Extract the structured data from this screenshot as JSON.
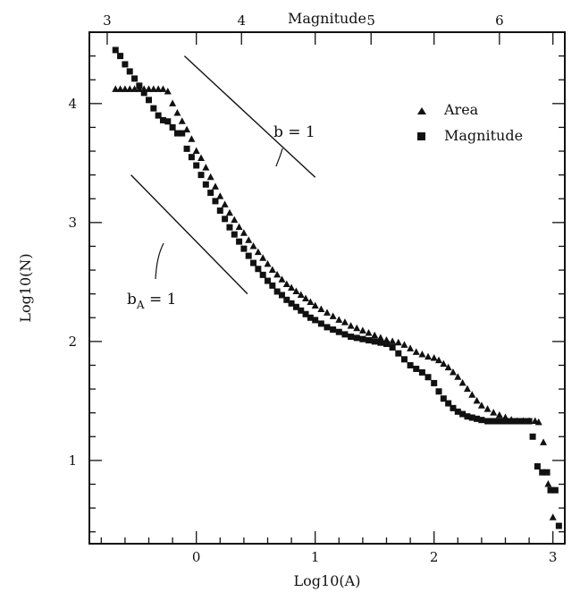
{
  "chart_data": {
    "type": "scatter",
    "xlabel": "Log10(A)",
    "ylabel": "Log10(N)",
    "top_xlabel": "Magnitude",
    "xlim": [
      -0.9,
      3.1
    ],
    "ylim": [
      0.3,
      4.6
    ],
    "x_ticks": [
      0,
      1,
      2,
      3
    ],
    "y_ticks": [
      1,
      2,
      3,
      4
    ],
    "top_ticks": [
      3,
      4,
      5,
      6
    ],
    "top_tick_positions_log10A": [
      -0.75,
      0.38,
      1.47,
      2.55
    ],
    "legend": [
      {
        "label": "Area",
        "marker": "triangle"
      },
      {
        "label": "Magnitude",
        "marker": "square"
      }
    ],
    "legend_placement": "top-right",
    "annotations": [
      {
        "text": "b = 1",
        "points_to": "upper reference line",
        "slope": -1
      },
      {
        "text": "b",
        "subscript": "A",
        "suffix": " = 1",
        "points_to": "lower reference line",
        "slope": -1
      }
    ],
    "reference_lines": [
      {
        "name": "b = 1",
        "x": [
          -0.1,
          1.0
        ],
        "y": [
          4.4,
          3.38
        ]
      },
      {
        "name": "bA = 1",
        "x": [
          -0.55,
          0.43
        ],
        "y": [
          3.4,
          2.4
        ]
      }
    ],
    "series": [
      {
        "name": "Area",
        "marker": "triangle",
        "x": [
          -0.68,
          -0.64,
          -0.6,
          -0.56,
          -0.52,
          -0.48,
          -0.44,
          -0.4,
          -0.36,
          -0.32,
          -0.28,
          -0.24,
          -0.2,
          -0.16,
          -0.12,
          -0.08,
          -0.04,
          0.0,
          0.04,
          0.08,
          0.12,
          0.16,
          0.2,
          0.24,
          0.28,
          0.32,
          0.36,
          0.4,
          0.44,
          0.48,
          0.52,
          0.56,
          0.6,
          0.64,
          0.68,
          0.72,
          0.76,
          0.8,
          0.84,
          0.88,
          0.92,
          0.96,
          1.0,
          1.05,
          1.1,
          1.15,
          1.2,
          1.25,
          1.3,
          1.35,
          1.4,
          1.45,
          1.5,
          1.55,
          1.6,
          1.65,
          1.7,
          1.75,
          1.8,
          1.85,
          1.9,
          1.95,
          2.0,
          2.04,
          2.08,
          2.12,
          2.16,
          2.2,
          2.24,
          2.28,
          2.32,
          2.36,
          2.4,
          2.45,
          2.5,
          2.55,
          2.6,
          2.65,
          2.7,
          2.75,
          2.8,
          2.85,
          2.88,
          2.92,
          2.96,
          3.0
        ],
        "y": [
          4.12,
          4.12,
          4.12,
          4.12,
          4.12,
          4.12,
          4.12,
          4.12,
          4.12,
          4.12,
          4.12,
          4.1,
          4.0,
          3.92,
          3.85,
          3.78,
          3.7,
          3.6,
          3.54,
          3.46,
          3.38,
          3.3,
          3.22,
          3.15,
          3.08,
          3.02,
          2.96,
          2.91,
          2.85,
          2.8,
          2.75,
          2.7,
          2.65,
          2.6,
          2.56,
          2.52,
          2.48,
          2.45,
          2.42,
          2.39,
          2.36,
          2.33,
          2.3,
          2.27,
          2.24,
          2.21,
          2.18,
          2.16,
          2.13,
          2.11,
          2.09,
          2.07,
          2.05,
          2.03,
          2.01,
          2.0,
          1.99,
          1.97,
          1.94,
          1.91,
          1.89,
          1.87,
          1.86,
          1.84,
          1.81,
          1.78,
          1.74,
          1.7,
          1.65,
          1.6,
          1.55,
          1.5,
          1.46,
          1.43,
          1.4,
          1.38,
          1.36,
          1.34,
          1.33,
          1.33,
          1.33,
          1.33,
          1.32,
          1.15,
          0.8,
          0.52
        ]
      },
      {
        "name": "Magnitude",
        "marker": "square",
        "x": [
          -0.68,
          -0.64,
          -0.6,
          -0.56,
          -0.52,
          -0.48,
          -0.44,
          -0.4,
          -0.36,
          -0.32,
          -0.28,
          -0.24,
          -0.2,
          -0.16,
          -0.12,
          -0.08,
          -0.04,
          0.0,
          0.04,
          0.08,
          0.12,
          0.16,
          0.2,
          0.24,
          0.28,
          0.32,
          0.36,
          0.4,
          0.44,
          0.48,
          0.52,
          0.56,
          0.6,
          0.64,
          0.68,
          0.72,
          0.76,
          0.8,
          0.84,
          0.88,
          0.92,
          0.96,
          1.0,
          1.05,
          1.1,
          1.15,
          1.2,
          1.25,
          1.3,
          1.35,
          1.4,
          1.45,
          1.5,
          1.55,
          1.6,
          1.65,
          1.7,
          1.75,
          1.8,
          1.85,
          1.9,
          1.95,
          2.0,
          2.04,
          2.08,
          2.12,
          2.16,
          2.2,
          2.24,
          2.28,
          2.32,
          2.36,
          2.4,
          2.45,
          2.5,
          2.55,
          2.6,
          2.65,
          2.7,
          2.75,
          2.8,
          2.83,
          2.87,
          2.91,
          2.95,
          2.98,
          3.02,
          3.05
        ],
        "y": [
          4.45,
          4.4,
          4.33,
          4.27,
          4.21,
          4.15,
          4.09,
          4.03,
          3.96,
          3.9,
          3.86,
          3.85,
          3.8,
          3.75,
          3.75,
          3.62,
          3.55,
          3.48,
          3.4,
          3.32,
          3.25,
          3.18,
          3.1,
          3.03,
          2.96,
          2.9,
          2.84,
          2.78,
          2.72,
          2.66,
          2.61,
          2.56,
          2.51,
          2.47,
          2.42,
          2.39,
          2.35,
          2.32,
          2.29,
          2.26,
          2.23,
          2.2,
          2.18,
          2.15,
          2.12,
          2.1,
          2.08,
          2.06,
          2.04,
          2.03,
          2.02,
          2.01,
          2.0,
          1.99,
          1.98,
          1.95,
          1.9,
          1.85,
          1.8,
          1.77,
          1.74,
          1.7,
          1.65,
          1.58,
          1.52,
          1.48,
          1.44,
          1.41,
          1.39,
          1.37,
          1.36,
          1.35,
          1.34,
          1.33,
          1.33,
          1.33,
          1.33,
          1.33,
          1.33,
          1.33,
          1.33,
          1.2,
          0.95,
          0.9,
          0.9,
          0.75,
          0.75,
          0.45
        ]
      }
    ]
  }
}
